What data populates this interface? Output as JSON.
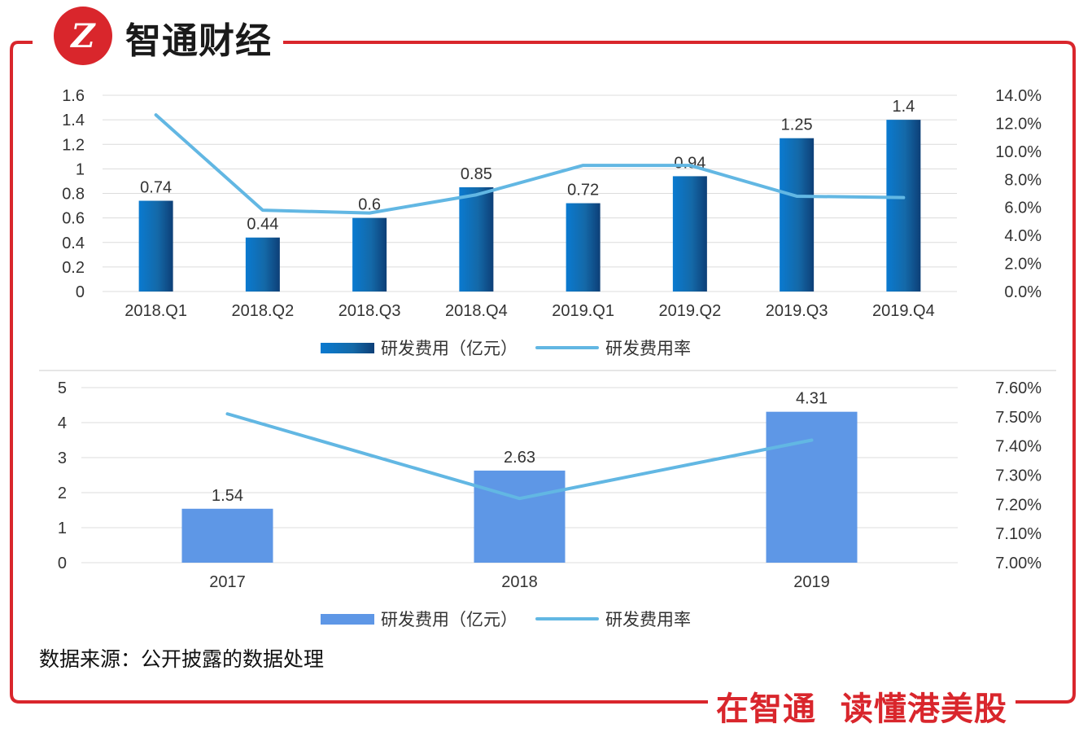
{
  "header": {
    "logo_text": "Z",
    "brand": "智通财经"
  },
  "footer": {
    "slogan": "在智通  读懂港美股",
    "source_note": "数据来源：公开披露的数据处理"
  },
  "colors": {
    "frame": "#d9262c",
    "bar_top": "#0a73c6",
    "bar_bottom": "#5e97e6",
    "line": "#62b7e3",
    "grid": "#dcdcdc"
  },
  "chart_data": [
    {
      "type": "bar",
      "title": "",
      "categories": [
        "2018.Q1",
        "2018.Q2",
        "2018.Q3",
        "2018.Q4",
        "2019.Q1",
        "2019.Q2",
        "2019.Q3",
        "2019.Q4"
      ],
      "series": [
        {
          "name": "研发费用（亿元）",
          "type": "bar",
          "axis": "left",
          "values": [
            0.74,
            0.44,
            0.6,
            0.85,
            0.72,
            0.94,
            1.25,
            1.4
          ],
          "labels": [
            "0.74",
            "0.44",
            "0.6",
            "0.85",
            "0.72",
            "0.94",
            "1.25",
            "1.4"
          ]
        },
        {
          "name": "研发费用率",
          "type": "line",
          "axis": "right",
          "values": [
            12.6,
            5.8,
            5.6,
            6.9,
            9.0,
            9.0,
            6.8,
            6.7
          ]
        }
      ],
      "ylim": [
        0,
        1.6
      ],
      "y_ticks": [
        "0",
        "0.2",
        "0.4",
        "0.6",
        "0.8",
        "1",
        "1.2",
        "1.4",
        "1.6"
      ],
      "y2lim": [
        0,
        14
      ],
      "y2_ticks": [
        "0.0%",
        "2.0%",
        "4.0%",
        "6.0%",
        "8.0%",
        "10.0%",
        "12.0%",
        "14.0%"
      ],
      "legend": "bottom"
    },
    {
      "type": "bar",
      "title": "",
      "categories": [
        "2017",
        "2018",
        "2019"
      ],
      "series": [
        {
          "name": "研发费用（亿元）",
          "type": "bar",
          "axis": "left",
          "values": [
            1.54,
            2.63,
            4.31
          ],
          "labels": [
            "1.54",
            "2.63",
            "4.31"
          ]
        },
        {
          "name": "研发费用率",
          "type": "line",
          "axis": "right",
          "values": [
            7.51,
            7.22,
            7.42
          ]
        }
      ],
      "ylim": [
        0,
        5
      ],
      "y_ticks": [
        "0",
        "1",
        "2",
        "3",
        "4",
        "5"
      ],
      "y2lim": [
        7.0,
        7.6
      ],
      "y2_ticks": [
        "7.00%",
        "7.10%",
        "7.20%",
        "7.30%",
        "7.40%",
        "7.50%",
        "7.60%"
      ],
      "legend": "bottom"
    }
  ]
}
